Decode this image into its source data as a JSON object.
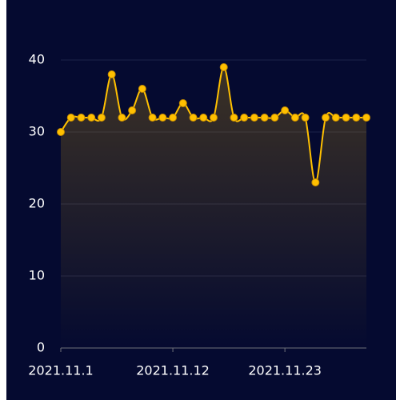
{
  "chart_data": {
    "type": "line",
    "categories": [
      "2021.11.1",
      null,
      null,
      null,
      null,
      null,
      null,
      null,
      null,
      null,
      null,
      "2021.11.12",
      null,
      null,
      null,
      null,
      null,
      null,
      null,
      null,
      null,
      null,
      "2021.11.23",
      null,
      null,
      null,
      null,
      null,
      null,
      null,
      null
    ],
    "values": [
      30,
      32,
      32,
      32,
      32,
      38,
      32,
      33,
      36,
      32,
      32,
      32,
      34,
      32,
      32,
      32,
      39,
      32,
      32,
      32,
      32,
      32,
      33,
      32,
      32,
      23,
      32,
      32,
      32,
      32,
      32
    ],
    "color": "#ffc000",
    "ylim": [
      0,
      40
    ],
    "yticks": [
      0,
      10,
      20,
      30,
      40
    ],
    "grid": true,
    "smooth": true,
    "area": true
  }
}
